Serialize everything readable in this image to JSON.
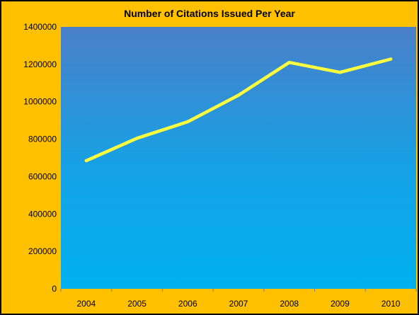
{
  "chart_data": {
    "type": "line",
    "title": "Number of Citations Issued Per Year",
    "xlabel": "",
    "ylabel": "",
    "categories": [
      "2004",
      "2005",
      "2006",
      "2007",
      "2008",
      "2009",
      "2010"
    ],
    "series": [
      {
        "values": [
          685000,
          805000,
          893000,
          1035000,
          1210000,
          1157000,
          1228000
        ]
      }
    ],
    "ylim": [
      0,
      1400000
    ],
    "yticks": [
      0,
      200000,
      400000,
      600000,
      800000,
      1000000,
      1200000,
      1400000
    ],
    "grid": false,
    "legend": "none",
    "colors": {
      "frame": "#ffc000",
      "plot_top": "#4a7fc8",
      "plot_bottom": "#00b0f0",
      "line": "#ffff3c"
    }
  }
}
